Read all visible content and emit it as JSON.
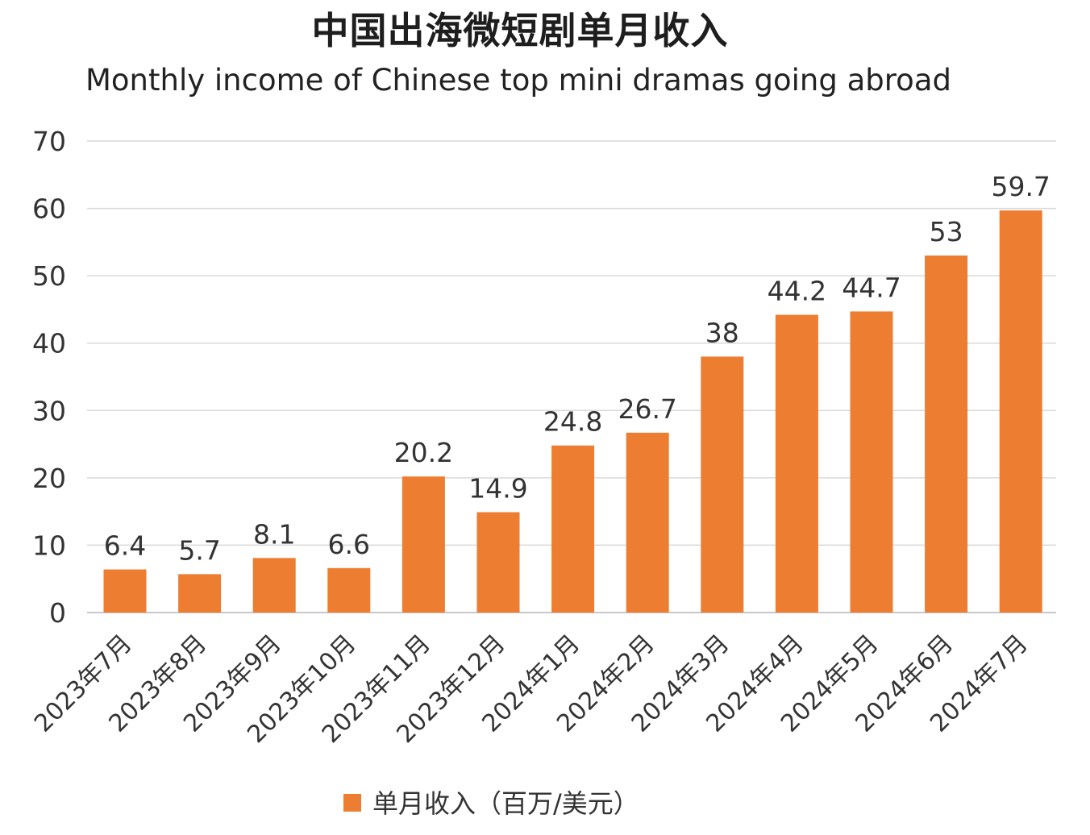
{
  "chart_data": {
    "type": "bar",
    "title": "中国出海微短剧单月收入",
    "subtitle": "Monthly income of Chinese top mini dramas going abroad",
    "categories": [
      "2023年7月",
      "2023年8月",
      "2023年9月",
      "2023年10月",
      "2023年11月",
      "2023年12月",
      "2024年1月",
      "2024年2月",
      "2024年3月",
      "2024年4月",
      "2024年5月",
      "2024年6月",
      "2024年7月"
    ],
    "series": [
      {
        "name": "单月收入（百万/美元）",
        "values": [
          6.4,
          5.7,
          8.1,
          6.6,
          20.2,
          14.9,
          24.8,
          26.7,
          38,
          44.2,
          44.7,
          53,
          59.7
        ],
        "labels": [
          "6.4",
          "5.7",
          "8.1",
          "6.6",
          "20.2",
          "14.9",
          "24.8",
          "26.7",
          "38",
          "44.2",
          "44.7",
          "53",
          "59.7"
        ]
      }
    ],
    "ylim": [
      0,
      70
    ],
    "yticks": [
      0,
      10,
      20,
      30,
      40,
      50,
      60,
      70
    ],
    "grid": true,
    "legend": "bottom",
    "colors": {
      "bar": "#ED7D31",
      "grid": "#D9D9D9",
      "axis": "#C8C8C8"
    }
  }
}
